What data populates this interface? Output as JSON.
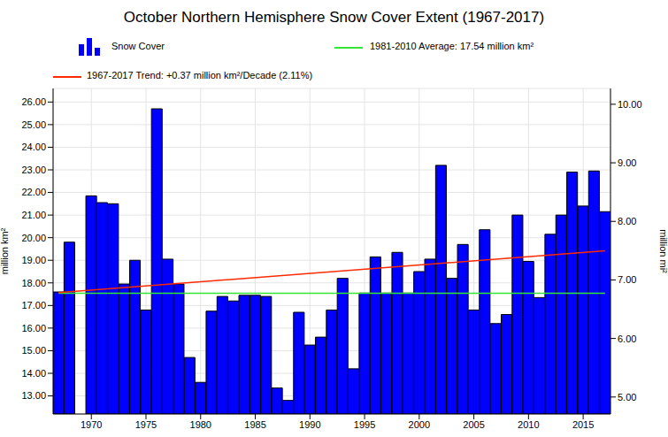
{
  "chart_data": {
    "type": "bar",
    "title": "October Northern Hemisphere Snow Cover Extent (1967-2017)",
    "x": [
      1967,
      1968,
      1969,
      1970,
      1971,
      1972,
      1973,
      1974,
      1975,
      1976,
      1977,
      1978,
      1979,
      1980,
      1981,
      1982,
      1983,
      1984,
      1985,
      1986,
      1987,
      1988,
      1989,
      1990,
      1991,
      1992,
      1993,
      1994,
      1995,
      1996,
      1997,
      1998,
      1999,
      2000,
      2001,
      2002,
      2003,
      2004,
      2005,
      2006,
      2007,
      2008,
      2009,
      2010,
      2011,
      2012,
      2013,
      2014,
      2015,
      2016,
      2017
    ],
    "xlim": [
      1966.5,
      2017.5
    ],
    "xticks": [
      1970,
      1975,
      1980,
      1985,
      1990,
      1995,
      2000,
      2005,
      2010,
      2015
    ],
    "ylim": [
      12.2,
      26.6
    ],
    "yticks": [
      {
        "value": 13,
        "label": "13.00"
      },
      {
        "value": 14,
        "label": "14.00"
      },
      {
        "value": 15,
        "label": "15.00"
      },
      {
        "value": 16,
        "label": "16.00"
      },
      {
        "value": 17,
        "label": "17.00"
      },
      {
        "value": 18,
        "label": "18.00"
      },
      {
        "value": 19,
        "label": "19.00"
      },
      {
        "value": 20,
        "label": "20.00"
      },
      {
        "value": 21,
        "label": "21.00"
      },
      {
        "value": 22,
        "label": "22.00"
      },
      {
        "value": 23,
        "label": "23.00"
      },
      {
        "value": 24,
        "label": "24.00"
      },
      {
        "value": 25,
        "label": "25.00"
      },
      {
        "value": 26,
        "label": "26.00"
      }
    ],
    "y_label": "million km²",
    "y2lim": [
      4.71,
      10.27
    ],
    "y2ticks": [
      {
        "value": 5,
        "label": "5.00"
      },
      {
        "value": 6,
        "label": "6.00"
      },
      {
        "value": 7,
        "label": "7.00"
      },
      {
        "value": 8,
        "label": "8.00"
      },
      {
        "value": 9,
        "label": "9.00"
      },
      {
        "value": 10,
        "label": "10.00"
      }
    ],
    "y2_label": "million mi²",
    "grid": true,
    "series": [
      {
        "name": "Snow Cover",
        "type": "bar",
        "color": "#0000ff",
        "values": [
          17.6,
          19.8,
          null,
          21.85,
          21.55,
          21.5,
          17.95,
          19.0,
          16.8,
          25.7,
          19.05,
          17.95,
          14.7,
          13.6,
          16.75,
          17.4,
          17.2,
          17.45,
          17.45,
          17.4,
          13.35,
          12.8,
          16.7,
          15.25,
          15.6,
          16.8,
          18.2,
          14.2,
          17.55,
          19.15,
          17.55,
          19.35,
          17.55,
          18.5,
          19.05,
          23.2,
          18.2,
          19.7,
          16.8,
          20.35,
          16.2,
          16.6,
          21.0,
          18.95,
          17.35,
          20.15,
          21.0,
          22.9,
          21.4,
          22.95,
          21.15
        ]
      },
      {
        "name": "1981-2010 Average: 17.54 million km²",
        "type": "line",
        "color": "#33e633",
        "values": [
          17.54,
          null,
          null,
          null,
          null,
          null,
          null,
          null,
          null,
          null,
          null,
          null,
          null,
          null,
          null,
          null,
          null,
          null,
          null,
          null,
          null,
          null,
          null,
          null,
          null,
          null,
          null,
          null,
          null,
          null,
          null,
          null,
          null,
          null,
          null,
          null,
          null,
          null,
          null,
          null,
          null,
          null,
          null,
          null,
          null,
          null,
          null,
          null,
          null,
          null,
          17.54
        ]
      },
      {
        "name": "1967-2017 Trend: +0.37 million km²/Decade (2.11%)",
        "type": "line",
        "color": "#ff2a00",
        "values": [
          17.57,
          null,
          null,
          null,
          null,
          null,
          null,
          null,
          null,
          null,
          null,
          null,
          null,
          null,
          null,
          null,
          null,
          null,
          null,
          null,
          null,
          null,
          null,
          null,
          null,
          null,
          null,
          null,
          null,
          null,
          null,
          null,
          null,
          null,
          null,
          null,
          null,
          null,
          null,
          null,
          null,
          null,
          null,
          null,
          null,
          null,
          null,
          null,
          null,
          null,
          19.42
        ]
      }
    ]
  }
}
